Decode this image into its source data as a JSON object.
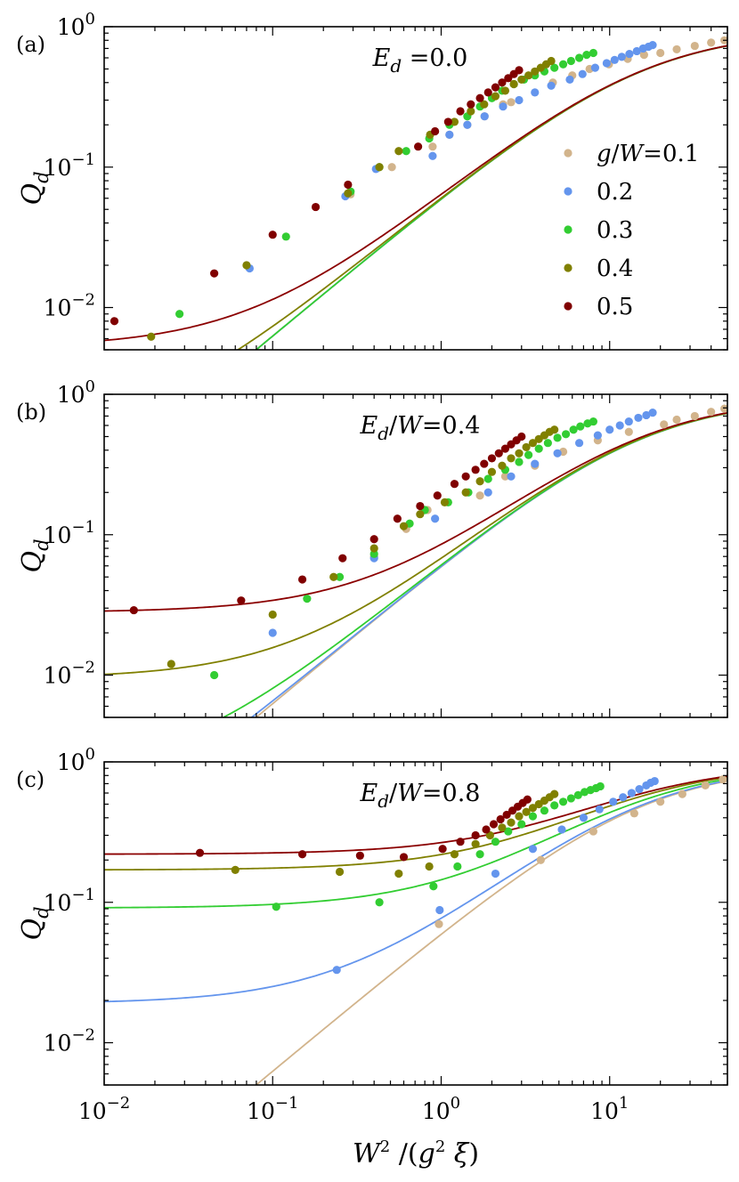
{
  "chart_data": {
    "type": "scatter",
    "figure_axes": {
      "xlabel": "W² /(g² ξ)",
      "ylabel": "Q_d",
      "xscale": "log",
      "yscale": "log",
      "xlim": [
        0.01,
        50
      ],
      "ylim": [
        0.005,
        1
      ],
      "x_ticks": [
        {
          "value": 0.01,
          "base": "10",
          "exp": "−2"
        },
        {
          "value": 0.1,
          "base": "10",
          "exp": "−1"
        },
        {
          "value": 1,
          "base": "10",
          "exp": "0"
        },
        {
          "value": 10,
          "base": "10",
          "exp": "1"
        }
      ],
      "y_ticks": [
        {
          "value": 0.01,
          "base": "10",
          "exp": "−2"
        },
        {
          "value": 0.1,
          "base": "10",
          "exp": "−1"
        },
        {
          "value": 1,
          "base": "10",
          "exp": "0"
        }
      ]
    },
    "legend": {
      "placement": "center-right of panel (a)",
      "prefix": "g/W=",
      "entries": [
        "0.1",
        "0.2",
        "0.3",
        "0.4",
        "0.5"
      ]
    },
    "series_colors": {
      "0.1": "#d2b48c",
      "0.2": "#6495ed",
      "0.3": "#32cd32",
      "0.4": "#808000",
      "0.5": "#800000"
    },
    "line_colors": {
      "0.1": "#d2b48c",
      "0.2": "#6495ed",
      "0.3": "#32cd32",
      "0.4": "#808000",
      "0.5": "#8b0000"
    },
    "panels": [
      {
        "id": "a",
        "label": "(a)",
        "annotation": {
          "var": "E",
          "sub": "d",
          "mid": " =0.0"
        },
        "offsets": {
          "0.1": 0,
          "0.2": 0,
          "0.3": 0,
          "0.4": 0.0011,
          "0.5": 0.0052
        },
        "series": [
          {
            "g": "0.1",
            "x": [
              0.29,
              0.51,
              0.89,
              1.12,
              1.43,
              1.81,
              2.33,
              2.6,
              4.6,
              6.0,
              7.6,
              9.9,
              12.8,
              16.0,
              20.0,
              25.0,
              32.0,
              40.0,
              48.0
            ],
            "y": [
              0.064,
              0.1,
              0.14,
              0.17,
              0.2,
              0.23,
              0.28,
              0.29,
              0.4,
              0.45,
              0.5,
              0.54,
              0.59,
              0.63,
              0.65,
              0.69,
              0.73,
              0.77,
              0.8
            ]
          },
          {
            "g": "0.2",
            "x": [
              0.073,
              0.27,
              0.41,
              0.89,
              1.12,
              1.43,
              1.81,
              2.33,
              2.9,
              3.6,
              4.5,
              5.8,
              6.9,
              8.2,
              9.6,
              10.7,
              11.8,
              13.1,
              14.5,
              15.8,
              17.0,
              18.0
            ],
            "y": [
              0.019,
              0.062,
              0.097,
              0.12,
              0.17,
              0.2,
              0.23,
              0.27,
              0.3,
              0.34,
              0.38,
              0.42,
              0.46,
              0.51,
              0.55,
              0.58,
              0.61,
              0.64,
              0.67,
              0.7,
              0.72,
              0.74
            ]
          },
          {
            "g": "0.3",
            "x": [
              0.028,
              0.12,
              0.29,
              0.43,
              0.62,
              0.85,
              1.12,
              1.43,
              1.7,
              2.0,
              2.3,
              2.7,
              3.1,
              3.6,
              4.1,
              4.7,
              5.3,
              5.9,
              6.6,
              7.3,
              8.0
            ],
            "y": [
              0.009,
              0.032,
              0.067,
              0.1,
              0.13,
              0.16,
              0.2,
              0.23,
              0.27,
              0.31,
              0.35,
              0.39,
              0.42,
              0.45,
              0.48,
              0.51,
              0.54,
              0.57,
              0.6,
              0.63,
              0.65
            ]
          },
          {
            "g": "0.4",
            "x": [
              0.019,
              0.07,
              0.28,
              0.43,
              0.56,
              0.86,
              1.2,
              1.5,
              1.8,
              2.1,
              2.4,
              2.7,
              3.0,
              3.3,
              3.6,
              3.9,
              4.2,
              4.5
            ],
            "y": [
              0.0062,
              0.02,
              0.065,
              0.1,
              0.13,
              0.17,
              0.21,
              0.25,
              0.28,
              0.32,
              0.35,
              0.39,
              0.42,
              0.45,
              0.48,
              0.51,
              0.54,
              0.57
            ]
          },
          {
            "g": "0.5",
            "x": [
              0.0115,
              0.045,
              0.1,
              0.18,
              0.28,
              0.73,
              0.92,
              1.1,
              1.3,
              1.5,
              1.7,
              1.9,
              2.1,
              2.3,
              2.5,
              2.7,
              2.9
            ],
            "y": [
              0.008,
              0.0175,
              0.033,
              0.052,
              0.075,
              0.14,
              0.18,
              0.21,
              0.25,
              0.28,
              0.31,
              0.34,
              0.37,
              0.4,
              0.43,
              0.46,
              0.49
            ]
          }
        ]
      },
      {
        "id": "b",
        "label": "(b)",
        "annotation": {
          "var": "E",
          "sub": "d",
          "mid": "/W=0.4"
        },
        "offsets": {
          "0.1": 0,
          "0.2": 0.0003,
          "0.3": 0.0018,
          "0.4": 0.0095,
          "0.5": 0.028
        },
        "series": [
          {
            "g": "0.1",
            "x": [
              0.4,
              0.62,
              0.83,
              1.7,
              2.4,
              3.6,
              5.3,
              8.5,
              13.0,
              21.0,
              25.0,
              32.0,
              40.0,
              48.0
            ],
            "y": [
              0.07,
              0.11,
              0.15,
              0.19,
              0.26,
              0.31,
              0.39,
              0.47,
              0.54,
              0.61,
              0.66,
              0.7,
              0.75,
              0.79
            ]
          },
          {
            "g": "0.2",
            "x": [
              0.1,
              0.4,
              0.92,
              1.9,
              2.6,
              3.6,
              4.9,
              6.6,
              8.5,
              10.0,
              11.5,
              13.0,
              14.8,
              16.5,
              18.0
            ],
            "y": [
              0.02,
              0.068,
              0.13,
              0.2,
              0.26,
              0.32,
              0.38,
              0.45,
              0.51,
              0.56,
              0.6,
              0.64,
              0.68,
              0.71,
              0.74
            ]
          },
          {
            "g": "0.3",
            "x": [
              0.045,
              0.16,
              0.25,
              0.4,
              0.65,
              0.8,
              1.1,
              1.45,
              1.9,
              2.4,
              2.9,
              3.3,
              3.8,
              4.3,
              4.9,
              5.5,
              6.1,
              6.7,
              7.4,
              8.0
            ],
            "y": [
              0.01,
              0.035,
              0.05,
              0.073,
              0.12,
              0.15,
              0.17,
              0.2,
              0.25,
              0.29,
              0.33,
              0.37,
              0.41,
              0.45,
              0.49,
              0.52,
              0.56,
              0.59,
              0.62,
              0.64
            ]
          },
          {
            "g": "0.4",
            "x": [
              0.025,
              0.1,
              0.23,
              0.4,
              0.6,
              0.75,
              1.05,
              1.4,
              1.7,
              2.0,
              2.3,
              2.6,
              2.9,
              3.2,
              3.5,
              3.8,
              4.1,
              4.4,
              4.7
            ],
            "y": [
              0.012,
              0.027,
              0.05,
              0.08,
              0.115,
              0.14,
              0.17,
              0.2,
              0.24,
              0.28,
              0.31,
              0.35,
              0.38,
              0.42,
              0.45,
              0.48,
              0.51,
              0.54,
              0.56
            ]
          },
          {
            "g": "0.5",
            "x": [
              0.015,
              0.065,
              0.15,
              0.26,
              0.4,
              0.55,
              0.75,
              0.95,
              1.2,
              1.4,
              1.6,
              1.8,
              2.0,
              2.2,
              2.4,
              2.6,
              2.8,
              3.0
            ],
            "y": [
              0.029,
              0.034,
              0.048,
              0.068,
              0.093,
              0.13,
              0.16,
              0.19,
              0.23,
              0.26,
              0.29,
              0.32,
              0.35,
              0.38,
              0.41,
              0.44,
              0.47,
              0.5
            ]
          }
        ]
      },
      {
        "id": "c",
        "label": "(c)",
        "annotation": {
          "var": "E",
          "sub": "d",
          "mid": "/W=0.8"
        },
        "offsets": {
          "0.1": 0,
          "0.2": 0.019,
          "0.3": 0.091,
          "0.4": 0.17,
          "0.5": 0.22
        },
        "series": [
          {
            "g": "0.1",
            "x": [
              0.97,
              3.9,
              8.0,
              14.0,
              20.0,
              27.0,
              37.0,
              47.0
            ],
            "y": [
              0.07,
              0.2,
              0.32,
              0.43,
              0.52,
              0.59,
              0.68,
              0.75
            ]
          },
          {
            "g": "0.2",
            "x": [
              0.24,
              0.98,
              2.1,
              3.5,
              5.2,
              7.0,
              8.7,
              10.5,
              12.0,
              13.5,
              15.0,
              16.5,
              17.5,
              18.5
            ],
            "y": [
              0.033,
              0.088,
              0.16,
              0.24,
              0.33,
              0.4,
              0.46,
              0.52,
              0.56,
              0.6,
              0.64,
              0.68,
              0.71,
              0.73
            ]
          },
          {
            "g": "0.3",
            "x": [
              0.105,
              0.43,
              0.9,
              1.25,
              1.7,
              2.1,
              2.5,
              3.0,
              3.5,
              4.1,
              4.7,
              5.3,
              5.9,
              6.5,
              7.1,
              7.7,
              8.3,
              8.8
            ],
            "y": [
              0.093,
              0.1,
              0.13,
              0.18,
              0.22,
              0.27,
              0.32,
              0.36,
              0.41,
              0.45,
              0.49,
              0.52,
              0.55,
              0.58,
              0.61,
              0.63,
              0.65,
              0.67
            ]
          },
          {
            "g": "0.4",
            "x": [
              0.06,
              0.25,
              0.56,
              0.85,
              1.2,
              1.6,
              1.95,
              2.3,
              2.6,
              2.9,
              3.2,
              3.5,
              3.8,
              4.1,
              4.4,
              4.7
            ],
            "y": [
              0.17,
              0.165,
              0.16,
              0.18,
              0.22,
              0.26,
              0.3,
              0.34,
              0.37,
              0.41,
              0.44,
              0.47,
              0.5,
              0.53,
              0.56,
              0.59
            ]
          },
          {
            "g": "0.5",
            "x": [
              0.037,
              0.15,
              0.33,
              0.6,
              1.02,
              1.3,
              1.6,
              1.85,
              2.05,
              2.25,
              2.45,
              2.65,
              2.85,
              3.05,
              3.25
            ],
            "y": [
              0.225,
              0.22,
              0.215,
              0.21,
              0.24,
              0.27,
              0.3,
              0.33,
              0.36,
              0.39,
              0.42,
              0.45,
              0.48,
              0.51,
              0.54
            ]
          }
        ]
      }
    ]
  }
}
